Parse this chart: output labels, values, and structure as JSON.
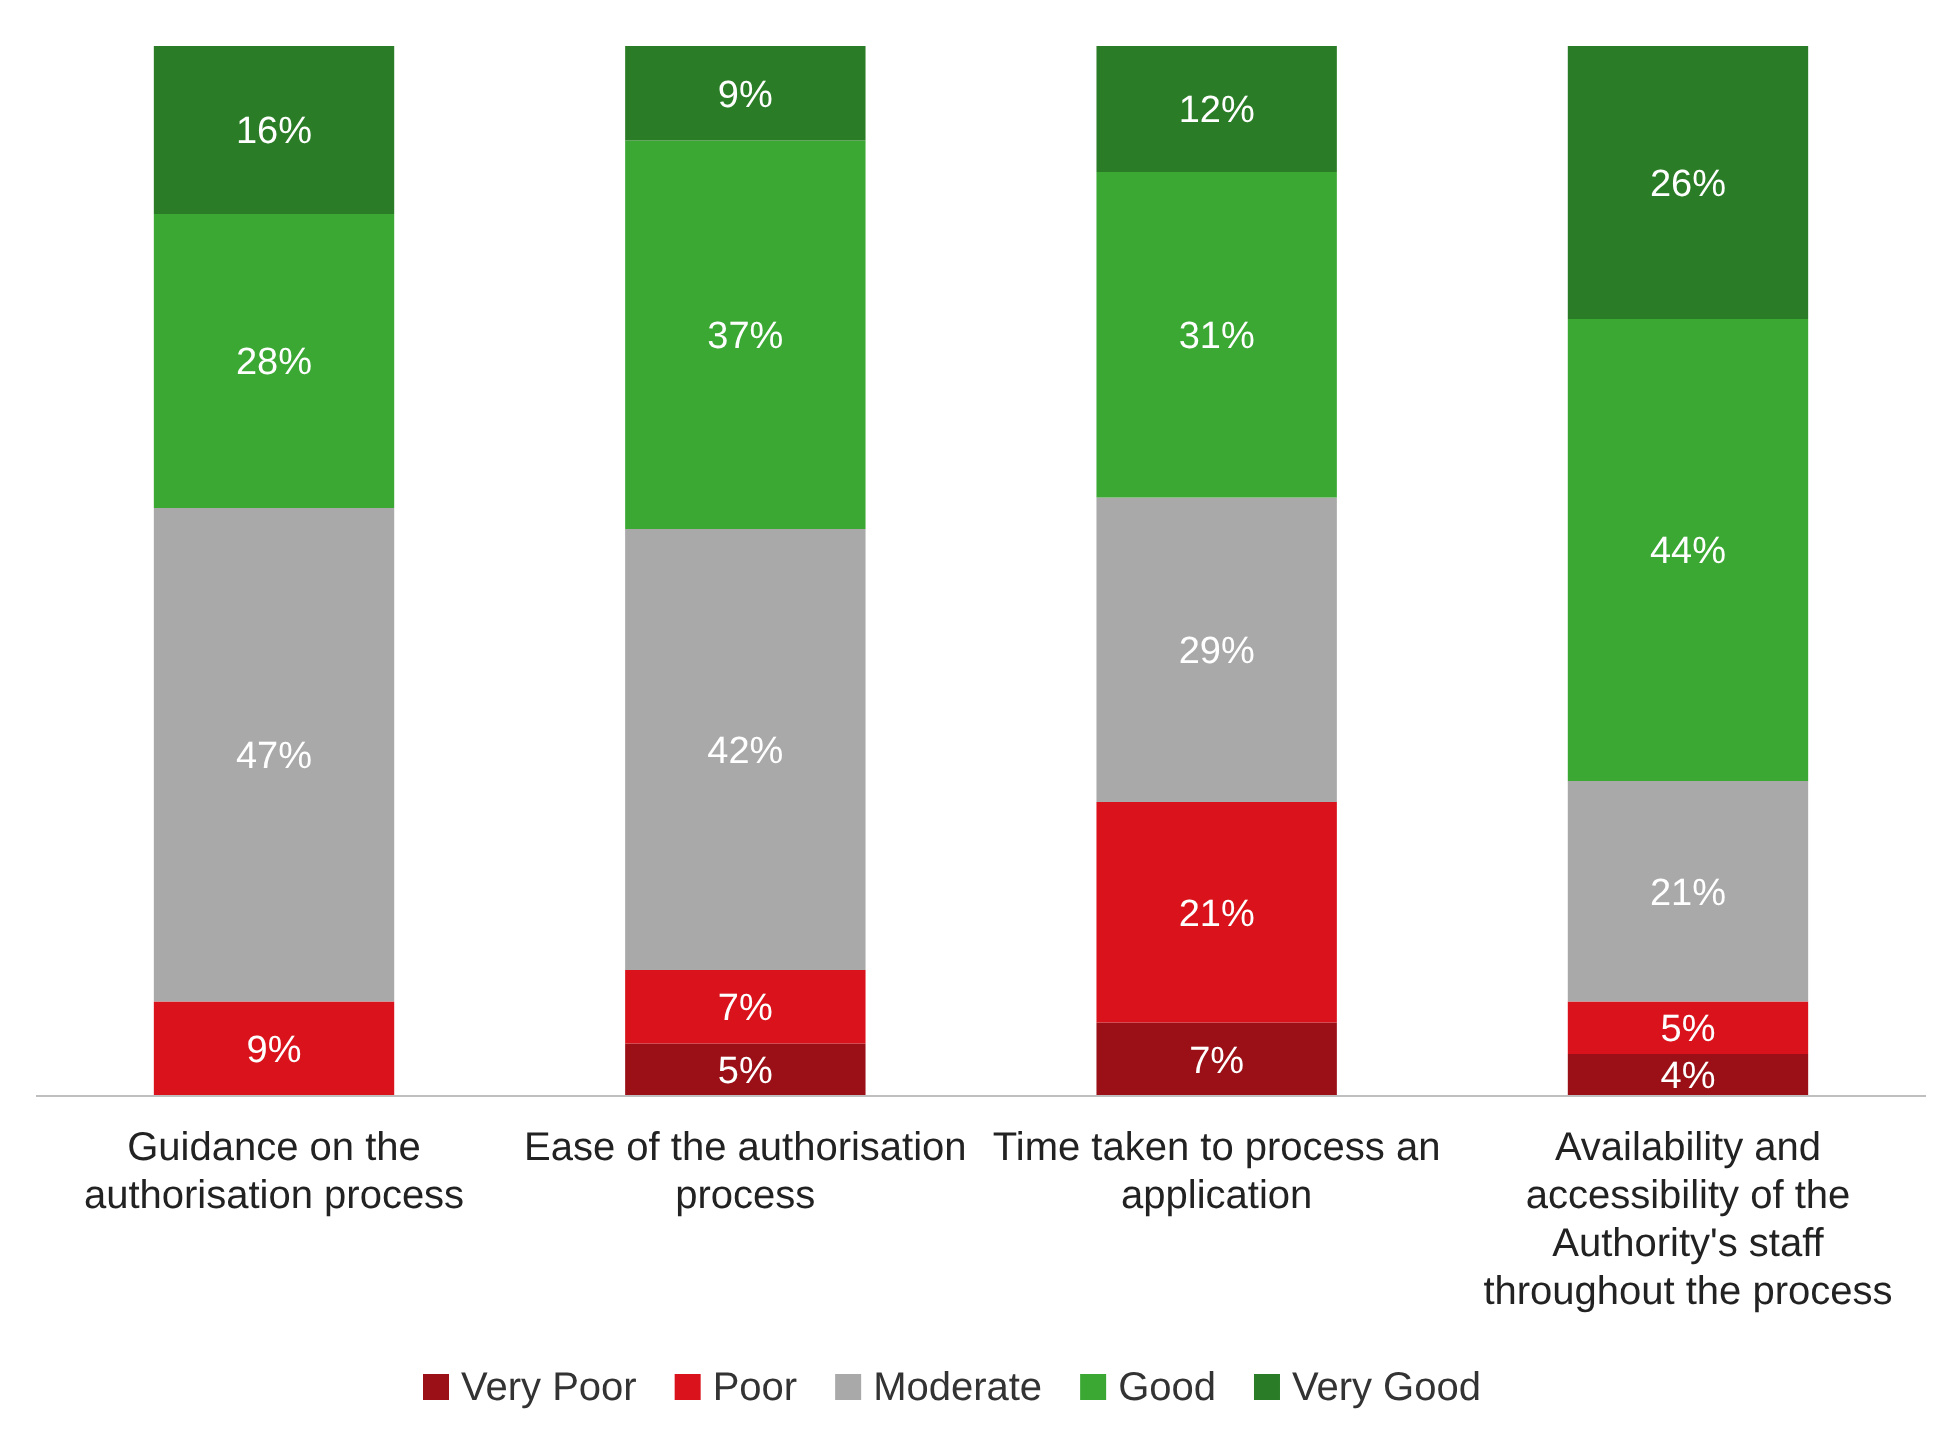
{
  "chart_data": {
    "type": "bar",
    "stacked": true,
    "legend": "bottom",
    "categories": [
      "Guidance on the authorisation process",
      "Ease of the authorisation process",
      "Time taken to process an application",
      "Availability and accessibility of the Authority's staff throughout the process"
    ],
    "series": [
      {
        "name": "Very Poor",
        "color": "#9b0f16",
        "values": [
          null,
          5,
          7,
          4
        ],
        "value_labels": [
          null,
          "5%",
          "7%",
          "4%"
        ]
      },
      {
        "name": "Poor",
        "color": "#d9121b",
        "values": [
          9,
          7,
          21,
          5
        ],
        "value_labels": [
          "9%",
          "7%",
          "21%",
          "5%"
        ]
      },
      {
        "name": "Moderate",
        "color": "#a9a9a9",
        "values": [
          47,
          42,
          29,
          21
        ],
        "value_labels": [
          "47%",
          "42%",
          "29%",
          "21%"
        ]
      },
      {
        "name": "Good",
        "color": "#3aa833",
        "values": [
          28,
          37,
          31,
          44
        ],
        "value_labels": [
          "28%",
          "37%",
          "31%",
          "44%"
        ]
      },
      {
        "name": "Very Good",
        "color": "#2a7d26",
        "values": [
          16,
          9,
          12,
          26
        ],
        "value_labels": [
          "16%",
          "9%",
          "12%",
          "26%"
        ]
      }
    ]
  }
}
